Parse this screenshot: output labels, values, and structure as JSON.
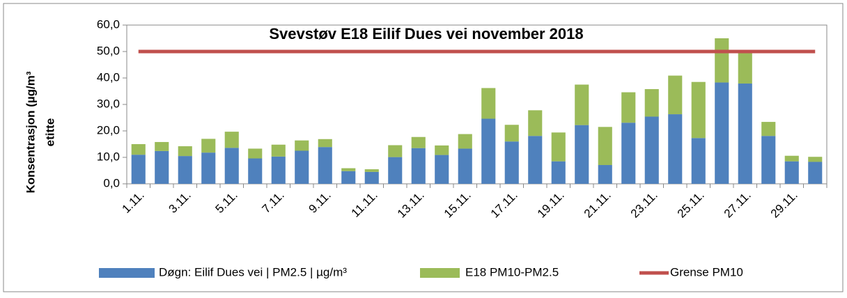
{
  "chart_data": {
    "type": "bar",
    "stacked": true,
    "title": "Svevstøv E18 Eilif Dues vei november 2018",
    "y_label": [
      "Konsentrasjon (µg/m³",
      "etitte"
    ],
    "categories": [
      "1.11.",
      null,
      "3.11.",
      null,
      "5.11.",
      null,
      "7.11.",
      null,
      "9.11.",
      null,
      "11.11.",
      null,
      "13.11.",
      null,
      "15.11.",
      null,
      "17.11.",
      null,
      "19.11.",
      null,
      "21.11.",
      null,
      "23.11.",
      null,
      "25.11.",
      null,
      "27.11.",
      null,
      "29.11.",
      null
    ],
    "series": [
      {
        "name": "Døgn: Eilif Dues vei | PM2.5 | µg/m³",
        "color": "#4f81bd",
        "type": "bar",
        "values": [
          11.0,
          12.4,
          10.5,
          11.8,
          13.6,
          9.6,
          10.3,
          12.5,
          13.9,
          4.8,
          4.5,
          10.1,
          13.5,
          10.9,
          13.3,
          24.6,
          16.0,
          18.1,
          8.5,
          22.2,
          7.1,
          23.1,
          25.4,
          26.3,
          17.3,
          38.3,
          37.9,
          18.1,
          8.5,
          8.3
        ]
      },
      {
        "name": "E18  PM10-PM2.5",
        "color": "#9bbb59",
        "type": "bar",
        "values": [
          4.0,
          3.4,
          3.7,
          5.2,
          6.1,
          3.7,
          4.5,
          3.9,
          3.0,
          1.1,
          1.0,
          4.5,
          4.2,
          3.6,
          5.5,
          11.6,
          6.3,
          9.7,
          10.9,
          15.3,
          14.4,
          11.5,
          10.4,
          14.6,
          21.2,
          16.7,
          12.1,
          5.3,
          2.1,
          1.9
        ]
      },
      {
        "name": "Grense PM10",
        "color": "#c0504d",
        "type": "line",
        "values": [
          50,
          50,
          50,
          50,
          50,
          50,
          50,
          50,
          50,
          50,
          50,
          50,
          50,
          50,
          50,
          50,
          50,
          50,
          50,
          50,
          50,
          50,
          50,
          50,
          50,
          50,
          50,
          50,
          50,
          50
        ]
      }
    ],
    "ylim": [
      0,
      60
    ],
    "yticks": [
      {
        "value": 0,
        "label": "0,0"
      },
      {
        "value": 10,
        "label": "10,0"
      },
      {
        "value": 20,
        "label": "20,0"
      },
      {
        "value": 30,
        "label": "30,0"
      },
      {
        "value": 40,
        "label": "40,0"
      },
      {
        "value": 50,
        "label": "50,0"
      },
      {
        "value": 60,
        "label": "60,0"
      }
    ],
    "grid": false,
    "legend": "bottom"
  }
}
